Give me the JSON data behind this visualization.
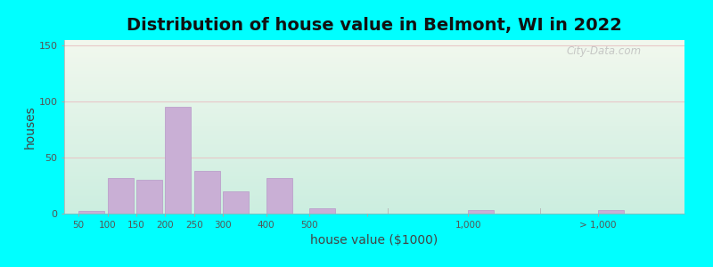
{
  "title": "Distribution of house value in Belmont, WI in 2022",
  "xlabel": "house value ($1000)",
  "ylabel": "houses",
  "bar_color": "#c9afd5",
  "bar_edgecolor": "#b898c8",
  "background_top": "#f2f8ee",
  "background_bottom": "#cceee0",
  "outer_bg": "#00ffff",
  "yticks": [
    0,
    50,
    100,
    150
  ],
  "ylim": [
    0,
    155
  ],
  "grid_color": "#e8c8c8",
  "bar_heights": [
    2,
    32,
    30,
    95,
    38,
    20,
    32,
    5,
    3,
    3
  ],
  "disp_positions": [
    0,
    10,
    20,
    30,
    40,
    50,
    65,
    80,
    135,
    180
  ],
  "disp_bar_width": 9,
  "far_bar_width": 9,
  "xlim": [
    -5,
    210
  ],
  "xtick_pos": [
    0,
    10,
    20,
    30,
    40,
    50,
    65,
    80,
    100,
    135,
    180
  ],
  "xtick_labels": [
    "50",
    "100",
    "150",
    "200",
    "250",
    "300",
    "400",
    "500",
    "",
    "1,000",
    "> 1,000"
  ],
  "watermark": "City-Data.com",
  "title_fontsize": 14,
  "axis_label_fontsize": 10
}
